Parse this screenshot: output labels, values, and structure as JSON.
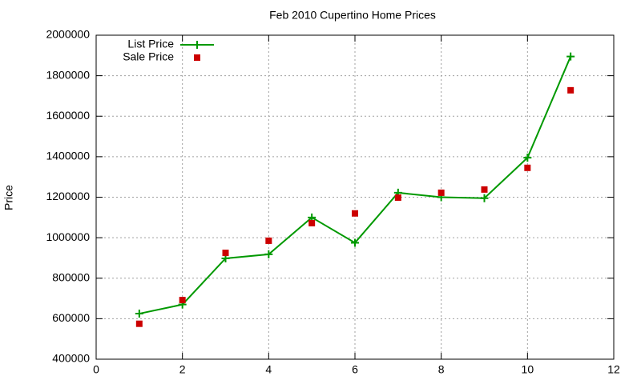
{
  "chart_data": {
    "type": "line",
    "title": "Feb 2010 Cupertino Home Prices",
    "y_label": "Price",
    "x": [
      1,
      2,
      3,
      4,
      5,
      6,
      7,
      8,
      9,
      10,
      11
    ],
    "series": [
      {
        "name": "List Price",
        "color": "#009900",
        "style": "linespoints",
        "values": [
          625000,
          670000,
          898000,
          918000,
          1100000,
          975000,
          1222000,
          1200000,
          1195000,
          1395000,
          1895000
        ]
      },
      {
        "name": "Sale Price",
        "color": "#cc0000",
        "style": "points",
        "values": [
          575000,
          692000,
          925000,
          985000,
          1072000,
          1120000,
          1198000,
          1222000,
          1238000,
          1345000,
          1728000
        ]
      }
    ],
    "xlim": [
      0,
      12
    ],
    "xticks": [
      0,
      2,
      4,
      6,
      8,
      10,
      12
    ],
    "ylim": [
      400000,
      2000000
    ],
    "yticks": [
      400000,
      600000,
      800000,
      1000000,
      1200000,
      1400000,
      1600000,
      1800000,
      2000000
    ],
    "grid": true,
    "legend": "top-left"
  }
}
